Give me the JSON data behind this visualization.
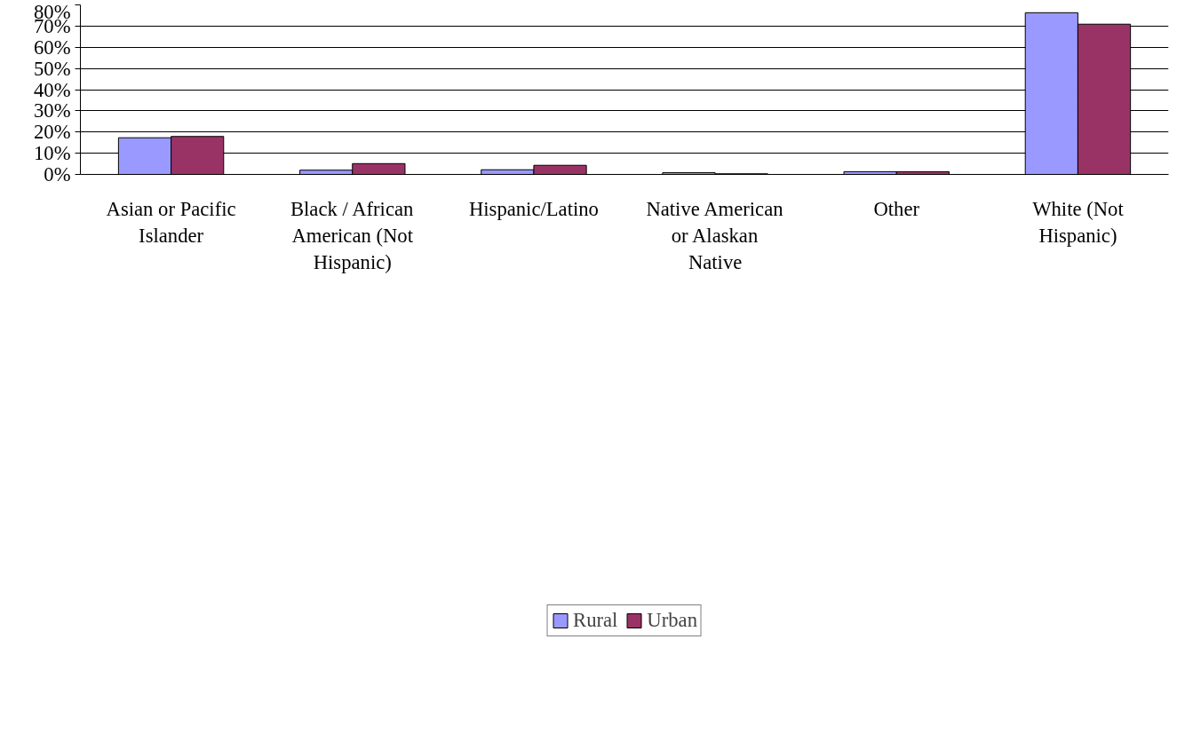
{
  "chart_data": {
    "type": "bar",
    "categories": [
      "Asian or Pacific Islander",
      "Black / African American (Not Hispanic)",
      "Hispanic/Latino",
      "Native American or Alaskan Native",
      "Other",
      "White (Not Hispanic)"
    ],
    "series": [
      {
        "name": "Rural",
        "color": "#9999ff",
        "values": [
          17.3,
          2.0,
          2.2,
          0.8,
          1.3,
          76.3
        ]
      },
      {
        "name": "Urban",
        "color": "#993366",
        "values": [
          17.9,
          5.1,
          4.3,
          0.3,
          1.3,
          70.9
        ]
      }
    ],
    "ylim": [
      0,
      80
    ],
    "yticks": [
      {
        "value": 0,
        "label": "0%"
      },
      {
        "value": 10,
        "label": "10%"
      },
      {
        "value": 20,
        "label": "20%"
      },
      {
        "value": 30,
        "label": "30%"
      },
      {
        "value": 40,
        "label": "40%"
      },
      {
        "value": 50,
        "label": "50%"
      },
      {
        "value": 60,
        "label": "60%"
      },
      {
        "value": 70,
        "label": "70%"
      },
      {
        "value": 80,
        "label": "80%"
      }
    ],
    "grid": "y",
    "legend": "bottom"
  }
}
